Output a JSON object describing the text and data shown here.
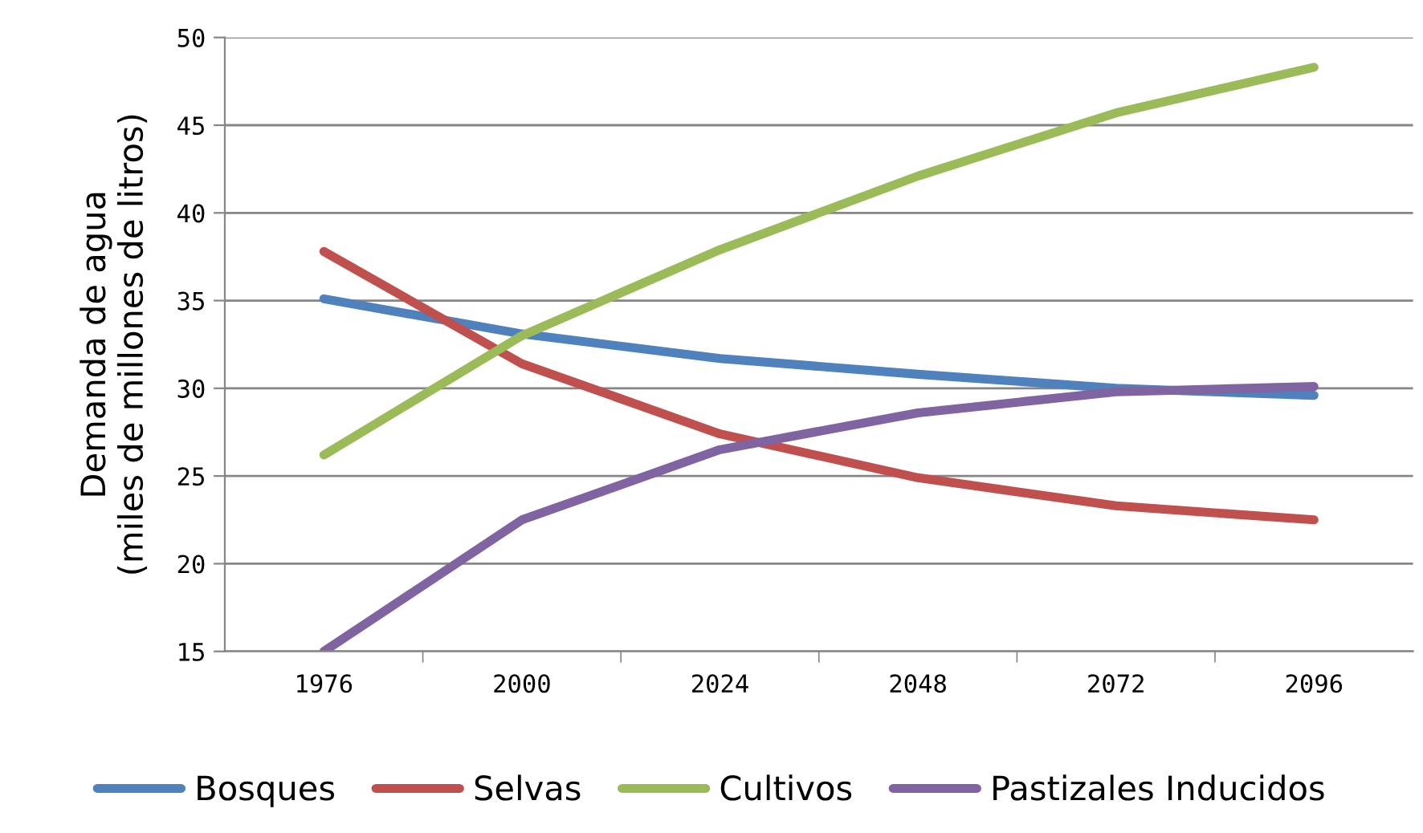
{
  "chart_data": {
    "type": "line",
    "ylabel": "Demanda de agua\n(miles de millones de litros)",
    "categories": [
      "1976",
      "2000",
      "2024",
      "2048",
      "2072",
      "2096"
    ],
    "series": [
      {
        "name": "Bosques",
        "color": "#4f81bd",
        "values": [
          35.1,
          33.1,
          31.7,
          30.8,
          30.0,
          29.6
        ]
      },
      {
        "name": "Selvas",
        "color": "#c0504d",
        "values": [
          37.8,
          31.4,
          27.4,
          24.9,
          23.3,
          22.5
        ]
      },
      {
        "name": "Cultivos",
        "color": "#9bbb59",
        "values": [
          26.2,
          33.0,
          37.9,
          42.1,
          45.7,
          48.3
        ]
      },
      {
        "name": "Pastizales Inducidos",
        "color": "#8064a2",
        "values": [
          15.0,
          22.5,
          26.5,
          28.6,
          29.8,
          30.1
        ]
      }
    ],
    "ylim": [
      15,
      50
    ],
    "yticks": [
      15,
      20,
      25,
      30,
      35,
      40,
      45,
      50
    ],
    "grid": "y",
    "legend": "bottom",
    "marker": "none",
    "line_style": "solid"
  }
}
